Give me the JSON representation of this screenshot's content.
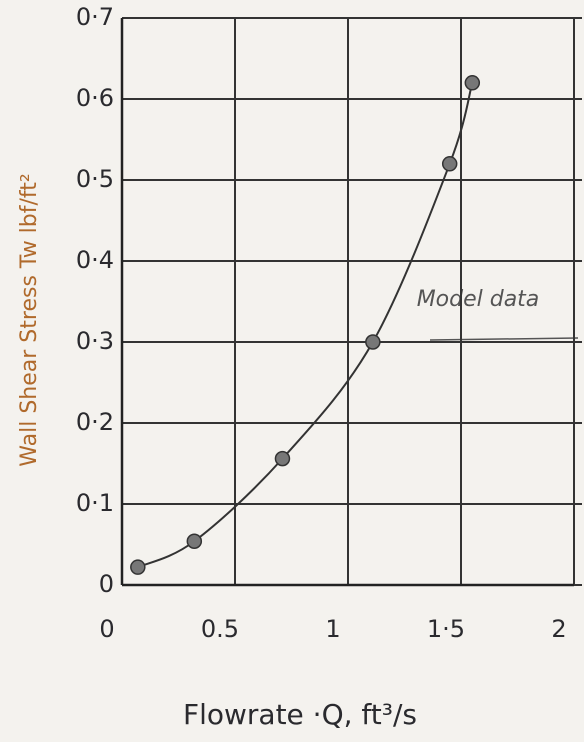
{
  "chart_data": {
    "type": "line",
    "x_label": "Flowrate ·Q, ft³/s",
    "y_label": "Wall Shear Stress Tw lbf/ft²",
    "annotation": "Model data",
    "x": [
      0.07,
      0.32,
      0.71,
      1.11,
      1.45,
      1.55
    ],
    "series": [
      {
        "color": "#333333",
        "values": [
          0.022,
          0.054,
          0.156,
          0.3,
          0.52,
          0.62
        ]
      }
    ],
    "xlim": [
      0,
      2
    ],
    "ylim": [
      0,
      0.7
    ],
    "xticks": [
      0,
      0.5,
      1,
      {
        "value": 1.5,
        "label": "1·5"
      },
      2
    ],
    "yticks": [
      0,
      {
        "value": 0.1,
        "label": "0·1"
      },
      {
        "value": 0.2,
        "label": "0·2"
      },
      {
        "value": 0.3,
        "label": "0·3"
      },
      {
        "value": 0.4,
        "label": "0·4"
      },
      {
        "value": 0.5,
        "label": "0·5"
      },
      {
        "value": 0.6,
        "label": "0·6"
      },
      {
        "value": 0.7,
        "label": "0·7"
      }
    ],
    "grid": true
  }
}
